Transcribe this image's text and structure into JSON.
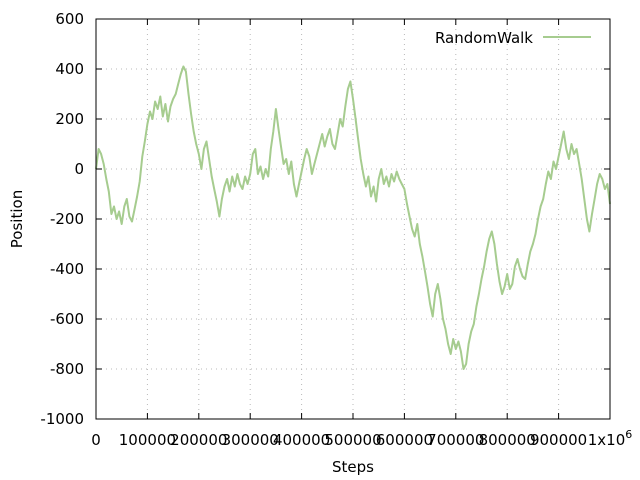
{
  "chart_data": {
    "type": "line",
    "title": "",
    "xlabel": "Steps",
    "ylabel": "Position",
    "xlim": [
      0,
      1000000
    ],
    "ylim": [
      -1000,
      600
    ],
    "x_ticks": [
      {
        "value": 0,
        "label": "0"
      },
      {
        "value": 100000,
        "label": "100000"
      },
      {
        "value": 200000,
        "label": "200000"
      },
      {
        "value": 300000,
        "label": "300000"
      },
      {
        "value": 400000,
        "label": "400000"
      },
      {
        "value": 500000,
        "label": "500000"
      },
      {
        "value": 600000,
        "label": "600000"
      },
      {
        "value": 700000,
        "label": "700000"
      },
      {
        "value": 800000,
        "label": "800000"
      },
      {
        "value": 900000,
        "label": "900000"
      },
      {
        "value": 1000000,
        "label": "1x10",
        "superscript": "6"
      }
    ],
    "y_ticks": [
      {
        "value": 600,
        "label": "600"
      },
      {
        "value": 400,
        "label": "400"
      },
      {
        "value": 200,
        "label": "200"
      },
      {
        "value": 0,
        "label": "0"
      },
      {
        "value": -200,
        "label": "-200"
      },
      {
        "value": -400,
        "label": "-400"
      },
      {
        "value": -600,
        "label": "-600"
      },
      {
        "value": -800,
        "label": "-800"
      },
      {
        "value": -1000,
        "label": "-1000"
      }
    ],
    "grid": true,
    "legend_position": "top-right",
    "series": [
      {
        "name": "RandomWalk",
        "color": "#a6cc8f",
        "points": [
          [
            0,
            0
          ],
          [
            5000,
            80
          ],
          [
            10000,
            60
          ],
          [
            15000,
            20
          ],
          [
            20000,
            -40
          ],
          [
            25000,
            -90
          ],
          [
            30000,
            -180
          ],
          [
            35000,
            -150
          ],
          [
            40000,
            -200
          ],
          [
            45000,
            -170
          ],
          [
            50000,
            -220
          ],
          [
            55000,
            -150
          ],
          [
            60000,
            -120
          ],
          [
            65000,
            -190
          ],
          [
            70000,
            -210
          ],
          [
            75000,
            -160
          ],
          [
            80000,
            -110
          ],
          [
            85000,
            -50
          ],
          [
            90000,
            50
          ],
          [
            95000,
            110
          ],
          [
            100000,
            180
          ],
          [
            105000,
            230
          ],
          [
            110000,
            200
          ],
          [
            115000,
            270
          ],
          [
            120000,
            240
          ],
          [
            125000,
            290
          ],
          [
            130000,
            210
          ],
          [
            135000,
            260
          ],
          [
            140000,
            190
          ],
          [
            145000,
            250
          ],
          [
            150000,
            280
          ],
          [
            155000,
            300
          ],
          [
            160000,
            340
          ],
          [
            165000,
            380
          ],
          [
            170000,
            410
          ],
          [
            175000,
            390
          ],
          [
            180000,
            300
          ],
          [
            185000,
            220
          ],
          [
            190000,
            150
          ],
          [
            195000,
            100
          ],
          [
            200000,
            60
          ],
          [
            205000,
            0
          ],
          [
            210000,
            80
          ],
          [
            215000,
            110
          ],
          [
            220000,
            40
          ],
          [
            225000,
            -30
          ],
          [
            230000,
            -80
          ],
          [
            235000,
            -130
          ],
          [
            240000,
            -190
          ],
          [
            245000,
            -120
          ],
          [
            250000,
            -70
          ],
          [
            255000,
            -40
          ],
          [
            260000,
            -90
          ],
          [
            265000,
            -30
          ],
          [
            270000,
            -70
          ],
          [
            275000,
            -20
          ],
          [
            280000,
            -60
          ],
          [
            285000,
            -80
          ],
          [
            290000,
            -30
          ],
          [
            295000,
            -60
          ],
          [
            300000,
            -20
          ],
          [
            305000,
            60
          ],
          [
            310000,
            80
          ],
          [
            315000,
            -20
          ],
          [
            320000,
            10
          ],
          [
            325000,
            -40
          ],
          [
            330000,
            0
          ],
          [
            335000,
            -30
          ],
          [
            340000,
            80
          ],
          [
            345000,
            150
          ],
          [
            350000,
            240
          ],
          [
            355000,
            160
          ],
          [
            360000,
            90
          ],
          [
            365000,
            20
          ],
          [
            370000,
            40
          ],
          [
            375000,
            -20
          ],
          [
            380000,
            30
          ],
          [
            385000,
            -60
          ],
          [
            390000,
            -110
          ],
          [
            395000,
            -60
          ],
          [
            400000,
            -10
          ],
          [
            405000,
            40
          ],
          [
            410000,
            80
          ],
          [
            415000,
            50
          ],
          [
            420000,
            -20
          ],
          [
            425000,
            20
          ],
          [
            430000,
            60
          ],
          [
            435000,
            100
          ],
          [
            440000,
            140
          ],
          [
            445000,
            90
          ],
          [
            450000,
            130
          ],
          [
            455000,
            160
          ],
          [
            460000,
            100
          ],
          [
            465000,
            80
          ],
          [
            470000,
            140
          ],
          [
            475000,
            200
          ],
          [
            480000,
            170
          ],
          [
            485000,
            250
          ],
          [
            490000,
            320
          ],
          [
            495000,
            350
          ],
          [
            500000,
            280
          ],
          [
            505000,
            200
          ],
          [
            510000,
            120
          ],
          [
            515000,
            40
          ],
          [
            520000,
            -20
          ],
          [
            525000,
            -70
          ],
          [
            530000,
            -30
          ],
          [
            535000,
            -110
          ],
          [
            540000,
            -70
          ],
          [
            545000,
            -130
          ],
          [
            550000,
            -40
          ],
          [
            555000,
            0
          ],
          [
            560000,
            -60
          ],
          [
            565000,
            -30
          ],
          [
            570000,
            -70
          ],
          [
            575000,
            -20
          ],
          [
            580000,
            -50
          ],
          [
            585000,
            -10
          ],
          [
            590000,
            -40
          ],
          [
            595000,
            -60
          ],
          [
            600000,
            -80
          ],
          [
            605000,
            -140
          ],
          [
            610000,
            -190
          ],
          [
            615000,
            -240
          ],
          [
            620000,
            -270
          ],
          [
            625000,
            -220
          ],
          [
            630000,
            -300
          ],
          [
            635000,
            -350
          ],
          [
            640000,
            -410
          ],
          [
            645000,
            -470
          ],
          [
            650000,
            -540
          ],
          [
            655000,
            -590
          ],
          [
            660000,
            -500
          ],
          [
            665000,
            -460
          ],
          [
            670000,
            -520
          ],
          [
            675000,
            -600
          ],
          [
            680000,
            -640
          ],
          [
            685000,
            -700
          ],
          [
            690000,
            -740
          ],
          [
            695000,
            -680
          ],
          [
            700000,
            -720
          ],
          [
            705000,
            -690
          ],
          [
            710000,
            -730
          ],
          [
            715000,
            -800
          ],
          [
            720000,
            -780
          ],
          [
            725000,
            -700
          ],
          [
            730000,
            -650
          ],
          [
            735000,
            -620
          ],
          [
            740000,
            -550
          ],
          [
            745000,
            -500
          ],
          [
            750000,
            -440
          ],
          [
            755000,
            -390
          ],
          [
            760000,
            -330
          ],
          [
            765000,
            -280
          ],
          [
            770000,
            -250
          ],
          [
            775000,
            -300
          ],
          [
            780000,
            -380
          ],
          [
            785000,
            -450
          ],
          [
            790000,
            -500
          ],
          [
            795000,
            -470
          ],
          [
            800000,
            -420
          ],
          [
            805000,
            -480
          ],
          [
            810000,
            -460
          ],
          [
            815000,
            -390
          ],
          [
            820000,
            -360
          ],
          [
            825000,
            -400
          ],
          [
            830000,
            -430
          ],
          [
            835000,
            -440
          ],
          [
            840000,
            -380
          ],
          [
            845000,
            -330
          ],
          [
            850000,
            -300
          ],
          [
            855000,
            -260
          ],
          [
            860000,
            -200
          ],
          [
            865000,
            -150
          ],
          [
            870000,
            -120
          ],
          [
            875000,
            -60
          ],
          [
            880000,
            -10
          ],
          [
            885000,
            -40
          ],
          [
            890000,
            30
          ],
          [
            895000,
            0
          ],
          [
            900000,
            50
          ],
          [
            905000,
            100
          ],
          [
            910000,
            150
          ],
          [
            915000,
            80
          ],
          [
            920000,
            40
          ],
          [
            925000,
            100
          ],
          [
            930000,
            60
          ],
          [
            935000,
            80
          ],
          [
            940000,
            20
          ],
          [
            945000,
            -40
          ],
          [
            950000,
            -120
          ],
          [
            955000,
            -200
          ],
          [
            960000,
            -250
          ],
          [
            965000,
            -180
          ],
          [
            970000,
            -120
          ],
          [
            975000,
            -60
          ],
          [
            980000,
            -20
          ],
          [
            985000,
            -40
          ],
          [
            990000,
            -80
          ],
          [
            995000,
            -60
          ],
          [
            1000000,
            -140
          ]
        ]
      }
    ]
  }
}
